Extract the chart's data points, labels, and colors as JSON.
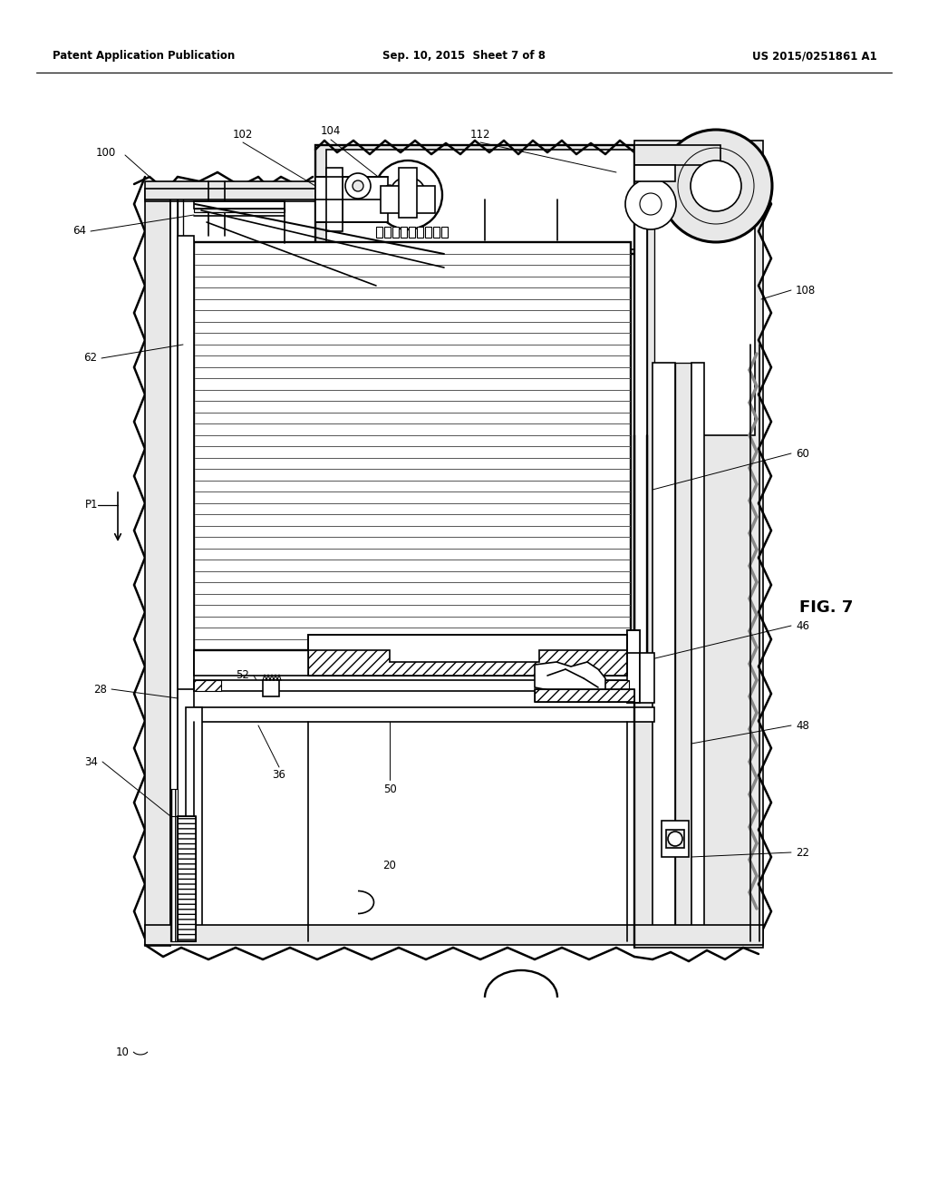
{
  "background_color": "#ffffff",
  "header_left": "Patent Application Publication",
  "header_center": "Sep. 10, 2015  Sheet 7 of 8",
  "header_right": "US 2015/0251861 A1",
  "fig_label": "FIG. 7",
  "line_color": "#000000",
  "line_width": 1.2,
  "gray_fill": "#e8e8e8",
  "dark_gray": "#b0b0b0",
  "hatch_gray": "#d0d0d0"
}
